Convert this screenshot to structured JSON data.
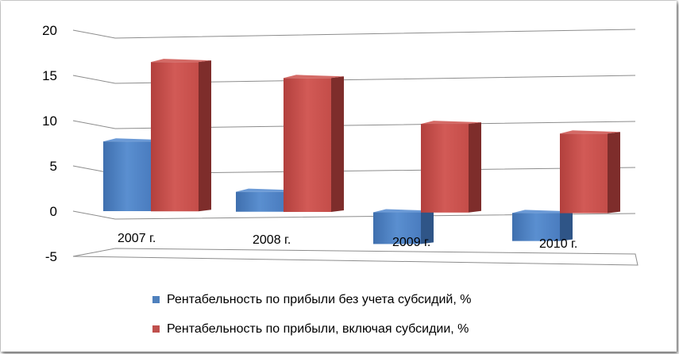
{
  "chart_data": {
    "type": "bar",
    "categories": [
      "2007 г.",
      "2008 г.",
      "2009 г.",
      "2010 г."
    ],
    "series": [
      {
        "name": "Рентабельность по прибыли  без учета субсидий, %",
        "values": [
          7.7,
          2.2,
          -3.5,
          -3.1
        ],
        "color": "#4f81bd"
      },
      {
        "name": "Рентабельность по прибыли, включая субсидии, %",
        "values": [
          16.5,
          14.8,
          9.8,
          8.8
        ],
        "color": "#c0504d"
      }
    ],
    "ylim": [
      -5,
      20
    ],
    "yticks": [
      "20",
      "15",
      "10",
      "5",
      "0",
      "-5"
    ],
    "grid": true,
    "legend": "bottom",
    "style": "3d-clustered"
  }
}
